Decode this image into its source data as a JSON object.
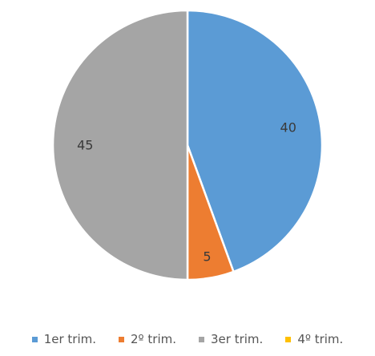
{
  "chart_data": {
    "type": "pie",
    "categories": [
      "1er trim.",
      "2º trim.",
      "3er trim.",
      "4º trim."
    ],
    "values": [
      40,
      5,
      45,
      0
    ],
    "data_labels": [
      "40",
      "5",
      "45",
      ""
    ],
    "colors": [
      "#5b9bd5",
      "#ed7d31",
      "#a5a5a5",
      "#ffc000"
    ],
    "title": "",
    "legend_position": "bottom",
    "start_angle_deg": 0,
    "direction": "clockwise"
  }
}
